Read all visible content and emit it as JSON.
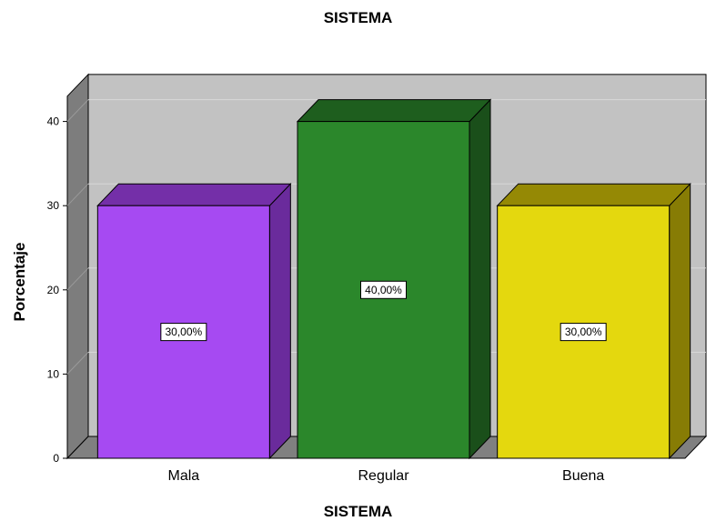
{
  "chart_data": {
    "type": "bar",
    "title": "SISTEMA",
    "xlabel": "SISTEMA",
    "ylabel": "Porcentaje",
    "categories": [
      "Mala",
      "Regular",
      "Buena"
    ],
    "values": [
      30,
      40,
      30
    ],
    "data_labels": [
      "30,00%",
      "40,00%",
      "30,00%"
    ],
    "ylim": [
      0,
      43
    ],
    "yticks": [
      0,
      10,
      20,
      30,
      40
    ],
    "ytick_labels": [
      "0",
      "10",
      "20",
      "30",
      "40"
    ],
    "grid": true,
    "style": "3d",
    "colors": {
      "bars": [
        {
          "front": "#a64af2",
          "top": "#742fa8",
          "side": "#6a2b9c"
        },
        {
          "front": "#2b872b",
          "top": "#1e5e1e",
          "side": "#1a4f1a"
        },
        {
          "front": "#e4d80e",
          "top": "#958905",
          "side": "#877c05"
        }
      ],
      "back_wall": "#c2c2c2",
      "side_wall": "#7d7d7d",
      "floor": "#808080",
      "gridline": "#d8d8d8"
    }
  }
}
